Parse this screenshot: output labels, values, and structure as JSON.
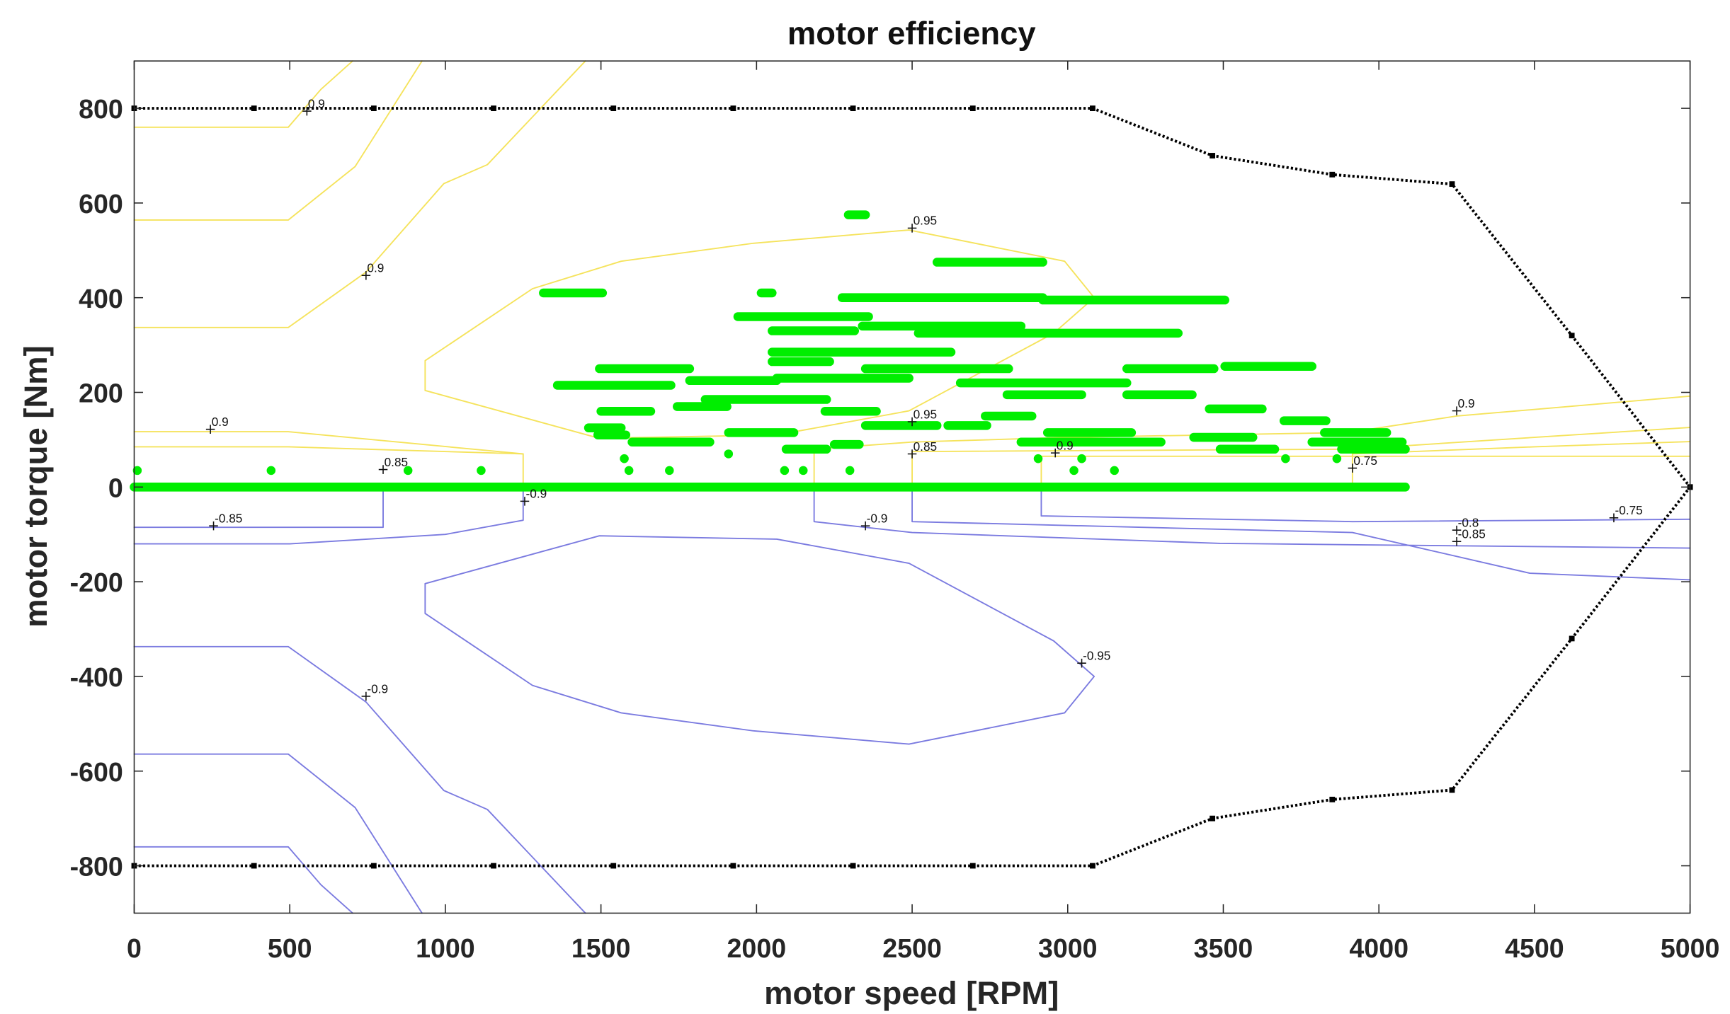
{
  "chart_data": {
    "type": "line",
    "title": "motor efficiency",
    "xlabel": "motor speed [RPM]",
    "ylabel": "motor torque [Nm]",
    "xlim": [
      0,
      5000
    ],
    "ylim": [
      -900,
      900
    ],
    "xticks": [
      0,
      500,
      1000,
      1500,
      2000,
      2500,
      3000,
      3500,
      4000,
      4500,
      5000
    ],
    "yticks": [
      -800,
      -600,
      -400,
      -200,
      0,
      200,
      400,
      600,
      800
    ],
    "series": [
      {
        "color": "#f5e35c",
        "width": 1.2,
        "x": [
          0,
          495,
          600,
          702
        ],
        "y": [
          760,
          760,
          840,
          900
        ]
      },
      {
        "color": "#f5e35c",
        "width": 1.2,
        "x": [
          0,
          495,
          710,
          925
        ],
        "y": [
          564,
          564,
          677,
          900
        ]
      },
      {
        "color": "#f5e35c",
        "width": 1.2,
        "x": [
          0,
          495,
          745,
          995,
          1135,
          1450
        ],
        "y": [
          337,
          337,
          454,
          641,
          681,
          900
        ]
      },
      {
        "color": "#f5e35c",
        "width": 1.2,
        "x": [
          935,
          935,
          1280,
          1565,
          1990,
          2490,
          2990,
          3085,
          2955,
          2490,
          2065,
          1495,
          935
        ],
        "y": [
          204,
          267,
          419,
          477,
          515,
          543,
          477,
          400,
          325,
          161,
          110,
          103,
          204
        ]
      },
      {
        "color": "#f5e35c",
        "width": 1.2,
        "x": [
          0,
          495,
          1250,
          1250
        ],
        "y": [
          117,
          117,
          70,
          0
        ]
      },
      {
        "color": "#f5e35c",
        "width": 1.2,
        "x": [
          0,
          495,
          1250
        ],
        "y": [
          85,
          85,
          70
        ]
      },
      {
        "color": "#f5e35c",
        "width": 1.2,
        "x": [
          2185,
          2185,
          2500,
          3000,
          3900,
          4250,
          5000
        ],
        "y": [
          0,
          80,
          95,
          105,
          115,
          150,
          192
        ]
      },
      {
        "color": "#f5e35c",
        "width": 1.2,
        "x": [
          2500,
          2500,
          3915,
          4500,
          5000
        ],
        "y": [
          0,
          75,
          80,
          105,
          126
        ]
      },
      {
        "color": "#f5e35c",
        "width": 1.2,
        "x": [
          3915,
          3915,
          4500,
          5000
        ],
        "y": [
          0,
          70,
          85,
          96
        ]
      },
      {
        "color": "#f5e35c",
        "width": 1.2,
        "x": [
          2915,
          2915,
          3915,
          5000
        ],
        "y": [
          0,
          65,
          65,
          65
        ]
      },
      {
        "color": "#7b7be0",
        "width": 1.2,
        "x": [
          0,
          495,
          600,
          702
        ],
        "y": [
          -760,
          -760,
          -840,
          -900
        ]
      },
      {
        "color": "#7b7be0",
        "width": 1.2,
        "x": [
          0,
          495,
          710,
          925
        ],
        "y": [
          -564,
          -564,
          -677,
          -900
        ]
      },
      {
        "color": "#7b7be0",
        "width": 1.2,
        "x": [
          0,
          495,
          745,
          995,
          1135,
          1450
        ],
        "y": [
          -337,
          -337,
          -454,
          -641,
          -681,
          -900
        ]
      },
      {
        "color": "#7b7be0",
        "width": 1.2,
        "x": [
          935,
          935,
          1280,
          1565,
          1990,
          2490,
          2990,
          3085,
          2955,
          2490,
          2065,
          1495,
          935
        ],
        "y": [
          -204,
          -267,
          -419,
          -477,
          -515,
          -543,
          -477,
          -400,
          -325,
          -161,
          -110,
          -103,
          -204
        ]
      },
      {
        "color": "#7b7be0",
        "width": 1.2,
        "x": [
          0,
          800,
          800
        ],
        "y": [
          -85,
          -85,
          0
        ]
      },
      {
        "color": "#7b7be0",
        "width": 1.2,
        "x": [
          0,
          500,
          1000,
          1250,
          1250
        ],
        "y": [
          -120,
          -120,
          -100,
          -70,
          0
        ]
      },
      {
        "color": "#7b7be0",
        "width": 1.2,
        "x": [
          2185,
          2185,
          2500,
          3490,
          5000
        ],
        "y": [
          0,
          -73,
          -96,
          -119,
          -129
        ]
      },
      {
        "color": "#7b7be0",
        "width": 1.2,
        "x": [
          2500,
          2500,
          3915,
          4485,
          5000
        ],
        "y": [
          0,
          -73,
          -96,
          -182,
          -196
        ]
      },
      {
        "color": "#7b7be0",
        "width": 1.2,
        "x": [
          2915,
          2915,
          3915,
          5000
        ],
        "y": [
          0,
          -61,
          -73,
          -68
        ]
      },
      {
        "color": "#00ee00",
        "width": 8,
        "x": [
          2295,
          2350,
          null,
          2580,
          2920,
          null,
          1315,
          1505,
          null,
          2015,
          2050,
          null,
          2275,
          2920,
          null,
          2920,
          3505,
          null,
          1940,
          2360,
          null,
          2050,
          2315,
          null,
          2340,
          2850,
          null,
          2520,
          3355,
          null,
          2050,
          2625,
          null,
          2050,
          2235,
          null,
          1495,
          1785,
          null,
          2350,
          2810,
          null,
          3190,
          3470,
          null,
          3505,
          3785,
          null,
          1360,
          1725,
          null,
          1785,
          2065,
          null,
          2065,
          2490,
          null,
          2655,
          3190,
          null,
          2805,
          3045,
          null,
          3190,
          3400,
          null,
          1835,
          2225,
          null,
          1460,
          1565,
          null,
          1500,
          1660,
          null,
          1745,
          1905,
          null,
          2220,
          2385,
          null,
          2615,
          2740,
          null,
          2735,
          2885,
          null,
          3455,
          3625,
          null,
          3695,
          3830,
          null,
          1910,
          2120,
          null,
          2350,
          2580,
          null,
          1490,
          1580,
          null,
          1600,
          1850,
          null,
          2095,
          2225,
          null,
          2250,
          2330,
          null,
          2850,
          3300,
          null,
          3405,
          3595,
          null,
          3490,
          3665,
          null,
          3825,
          4025,
          null,
          3785,
          4075,
          null,
          3880,
          4085,
          null,
          2935,
          3205,
          null,
          0,
          4085,
          null,
          1575,
          null,
          1910,
          null,
          2905,
          null,
          3045,
          null,
          3700,
          null,
          3865,
          null,
          1590,
          null,
          1720,
          null,
          2090,
          null,
          2150,
          null,
          2300,
          null,
          3020,
          null,
          3150,
          null,
          10,
          null,
          440,
          null,
          880,
          null,
          1115
        ],
        "y": [
          575,
          575,
          null,
          475,
          475,
          null,
          410,
          410,
          null,
          410,
          410,
          null,
          400,
          400,
          null,
          395,
          395,
          null,
          360,
          360,
          null,
          330,
          330,
          null,
          340,
          340,
          null,
          325,
          325,
          null,
          285,
          285,
          null,
          265,
          265,
          null,
          250,
          250,
          null,
          250,
          250,
          null,
          250,
          250,
          null,
          255,
          255,
          null,
          215,
          215,
          null,
          225,
          225,
          null,
          230,
          230,
          null,
          220,
          220,
          null,
          195,
          195,
          null,
          195,
          195,
          null,
          185,
          185,
          null,
          125,
          125,
          null,
          160,
          160,
          null,
          170,
          170,
          null,
          160,
          160,
          null,
          130,
          130,
          null,
          150,
          150,
          null,
          165,
          165,
          null,
          140,
          140,
          null,
          115,
          115,
          null,
          130,
          130,
          null,
          110,
          110,
          null,
          95,
          95,
          null,
          80,
          80,
          null,
          90,
          90,
          null,
          95,
          95,
          null,
          105,
          105,
          null,
          80,
          80,
          null,
          115,
          115,
          null,
          95,
          95,
          null,
          80,
          80,
          null,
          115,
          115,
          null,
          0,
          0,
          null,
          60,
          null,
          70,
          null,
          60,
          null,
          60,
          null,
          60,
          null,
          60,
          null,
          35,
          null,
          35,
          null,
          35,
          null,
          35,
          null,
          35,
          null,
          35,
          null,
          35,
          null,
          35,
          null,
          35,
          null,
          35,
          null,
          35
        ]
      },
      {
        "color": "#000000",
        "width": 2.5,
        "dash": "2 2",
        "marker": true,
        "x": [
          0,
          385,
          770,
          1155,
          1540,
          1925,
          2310,
          2695,
          3080,
          3465,
          3850,
          4235,
          4620,
          5000
        ],
        "y": [
          800,
          800,
          800,
          800,
          800,
          800,
          800,
          800,
          800,
          700,
          660,
          640,
          320,
          0
        ]
      },
      {
        "color": "#000000",
        "width": 2.5,
        "dash": "2 2",
        "marker": true,
        "x": [
          0,
          385,
          770,
          1155,
          1540,
          1925,
          2310,
          2695,
          3080,
          3465,
          3850,
          4235,
          4620,
          5000
        ],
        "y": [
          -800,
          -800,
          -800,
          -800,
          -800,
          -800,
          -800,
          -800,
          -800,
          -700,
          -660,
          -640,
          -320,
          0
        ]
      }
    ],
    "annotations": [
      {
        "text": "0.9",
        "x": 555,
        "y": 794
      },
      {
        "text": "0.9",
        "x": 745,
        "y": 447
      },
      {
        "text": "0.95",
        "x": 2500,
        "y": 547
      },
      {
        "text": "0.9",
        "x": 245,
        "y": 122
      },
      {
        "text": "0.85",
        "x": 800,
        "y": 37
      },
      {
        "text": "0.95",
        "x": 2500,
        "y": 138
      },
      {
        "text": "0.85",
        "x": 2500,
        "y": 70
      },
      {
        "text": "0.9",
        "x": 2960,
        "y": 72
      },
      {
        "text": "0.75",
        "x": 3915,
        "y": 40
      },
      {
        "text": "0.9",
        "x": 4250,
        "y": 161
      },
      {
        "text": "-0.9",
        "x": 1255,
        "y": -30
      },
      {
        "text": "-0.85",
        "x": 255,
        "y": -82
      },
      {
        "text": "-0.9",
        "x": 2350,
        "y": -82
      },
      {
        "text": "-0.8",
        "x": 4250,
        "y": -91
      },
      {
        "text": "-0.85",
        "x": 4250,
        "y": -115
      },
      {
        "text": "-0.75",
        "x": 4755,
        "y": -65
      },
      {
        "text": "-0.95",
        "x": 3045,
        "y": -372
      },
      {
        "text": "-0.9",
        "x": 745,
        "y": -442
      }
    ]
  }
}
